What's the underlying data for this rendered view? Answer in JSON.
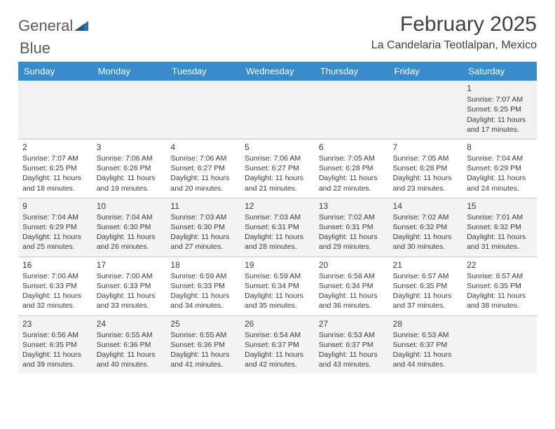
{
  "brand": {
    "part1": "General",
    "part2": "Blue"
  },
  "title": "February 2025",
  "location": "La Candelaria Teotlalpan, Mexico",
  "colors": {
    "header_bg": "#3a8bc9",
    "header_fg": "#ffffff",
    "shade_bg": "#f1f1f1",
    "text": "#3a3a3a",
    "brand_blue": "#2f6fb0"
  },
  "day_headers": [
    "Sunday",
    "Monday",
    "Tuesday",
    "Wednesday",
    "Thursday",
    "Friday",
    "Saturday"
  ],
  "weeks": [
    [
      null,
      null,
      null,
      null,
      null,
      null,
      {
        "n": "1",
        "sr": "7:07 AM",
        "ss": "6:25 PM",
        "dl": "11 hours and 17 minutes."
      }
    ],
    [
      {
        "n": "2",
        "sr": "7:07 AM",
        "ss": "6:25 PM",
        "dl": "11 hours and 18 minutes."
      },
      {
        "n": "3",
        "sr": "7:06 AM",
        "ss": "6:26 PM",
        "dl": "11 hours and 19 minutes."
      },
      {
        "n": "4",
        "sr": "7:06 AM",
        "ss": "6:27 PM",
        "dl": "11 hours and 20 minutes."
      },
      {
        "n": "5",
        "sr": "7:06 AM",
        "ss": "6:27 PM",
        "dl": "11 hours and 21 minutes."
      },
      {
        "n": "6",
        "sr": "7:05 AM",
        "ss": "6:28 PM",
        "dl": "11 hours and 22 minutes."
      },
      {
        "n": "7",
        "sr": "7:05 AM",
        "ss": "6:28 PM",
        "dl": "11 hours and 23 minutes."
      },
      {
        "n": "8",
        "sr": "7:04 AM",
        "ss": "6:29 PM",
        "dl": "11 hours and 24 minutes."
      }
    ],
    [
      {
        "n": "9",
        "sr": "7:04 AM",
        "ss": "6:29 PM",
        "dl": "11 hours and 25 minutes."
      },
      {
        "n": "10",
        "sr": "7:04 AM",
        "ss": "6:30 PM",
        "dl": "11 hours and 26 minutes."
      },
      {
        "n": "11",
        "sr": "7:03 AM",
        "ss": "6:30 PM",
        "dl": "11 hours and 27 minutes."
      },
      {
        "n": "12",
        "sr": "7:03 AM",
        "ss": "6:31 PM",
        "dl": "11 hours and 28 minutes."
      },
      {
        "n": "13",
        "sr": "7:02 AM",
        "ss": "6:31 PM",
        "dl": "11 hours and 29 minutes."
      },
      {
        "n": "14",
        "sr": "7:02 AM",
        "ss": "6:32 PM",
        "dl": "11 hours and 30 minutes."
      },
      {
        "n": "15",
        "sr": "7:01 AM",
        "ss": "6:32 PM",
        "dl": "11 hours and 31 minutes."
      }
    ],
    [
      {
        "n": "16",
        "sr": "7:00 AM",
        "ss": "6:33 PM",
        "dl": "11 hours and 32 minutes."
      },
      {
        "n": "17",
        "sr": "7:00 AM",
        "ss": "6:33 PM",
        "dl": "11 hours and 33 minutes."
      },
      {
        "n": "18",
        "sr": "6:59 AM",
        "ss": "6:33 PM",
        "dl": "11 hours and 34 minutes."
      },
      {
        "n": "19",
        "sr": "6:59 AM",
        "ss": "6:34 PM",
        "dl": "11 hours and 35 minutes."
      },
      {
        "n": "20",
        "sr": "6:58 AM",
        "ss": "6:34 PM",
        "dl": "11 hours and 36 minutes."
      },
      {
        "n": "21",
        "sr": "6:57 AM",
        "ss": "6:35 PM",
        "dl": "11 hours and 37 minutes."
      },
      {
        "n": "22",
        "sr": "6:57 AM",
        "ss": "6:35 PM",
        "dl": "11 hours and 38 minutes."
      }
    ],
    [
      {
        "n": "23",
        "sr": "6:56 AM",
        "ss": "6:35 PM",
        "dl": "11 hours and 39 minutes."
      },
      {
        "n": "24",
        "sr": "6:55 AM",
        "ss": "6:36 PM",
        "dl": "11 hours and 40 minutes."
      },
      {
        "n": "25",
        "sr": "6:55 AM",
        "ss": "6:36 PM",
        "dl": "11 hours and 41 minutes."
      },
      {
        "n": "26",
        "sr": "6:54 AM",
        "ss": "6:37 PM",
        "dl": "11 hours and 42 minutes."
      },
      {
        "n": "27",
        "sr": "6:53 AM",
        "ss": "6:37 PM",
        "dl": "11 hours and 43 minutes."
      },
      {
        "n": "28",
        "sr": "6:53 AM",
        "ss": "6:37 PM",
        "dl": "11 hours and 44 minutes."
      },
      null
    ]
  ],
  "labels": {
    "sunrise": "Sunrise:",
    "sunset": "Sunset:",
    "daylight": "Daylight:"
  }
}
